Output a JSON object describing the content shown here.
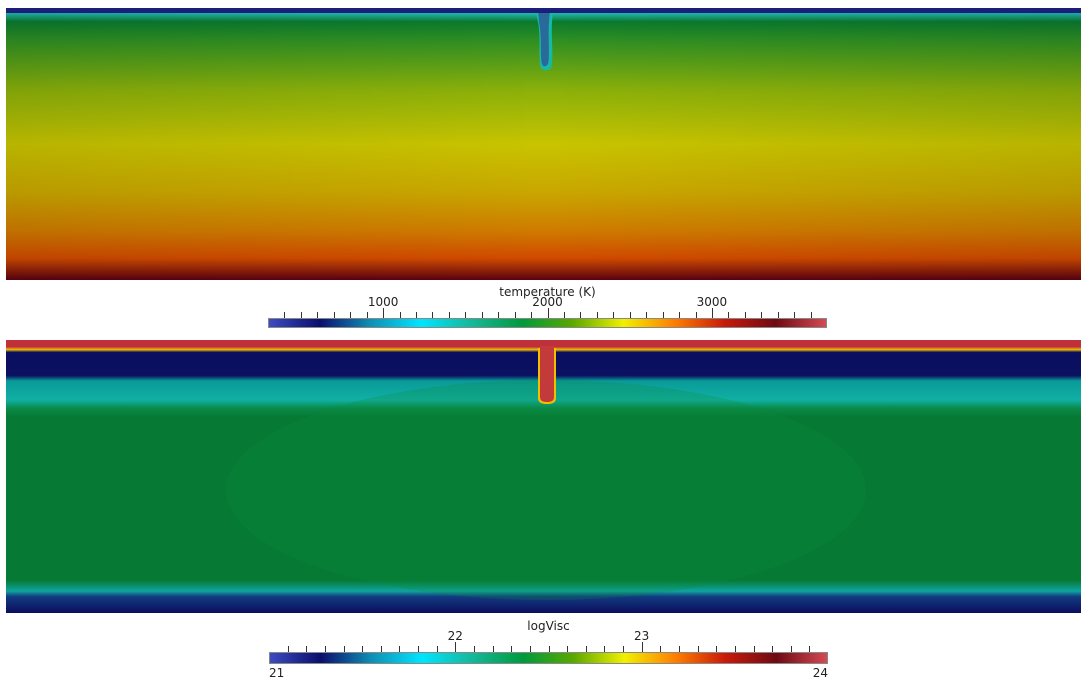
{
  "colormap": [
    "#3b4cc0",
    "#0b0e6e",
    "#0f8fb3",
    "#00e5ff",
    "#14b89a",
    "#009a3c",
    "#5aa800",
    "#f0f000",
    "#ff7f00",
    "#c81a0a",
    "#6e0a14",
    "#d44a52"
  ],
  "temperature_colorbar": {
    "title": "temperature (K)",
    "range": [
      300,
      3700
    ],
    "major_ticks": [
      {
        "value": 1000,
        "label": "1000"
      },
      {
        "value": 2000,
        "label": "2000"
      },
      {
        "value": 3000,
        "label": "3000"
      }
    ],
    "minor_step": 100
  },
  "viscosity_colorbar": {
    "title": "logVisc",
    "range": [
      21,
      24
    ],
    "major_ticks": [
      {
        "value": 22,
        "label": "22"
      },
      {
        "value": 23,
        "label": "23"
      }
    ],
    "end_labels": {
      "min": "21",
      "max": "24"
    },
    "minor_step": 0.1
  }
}
